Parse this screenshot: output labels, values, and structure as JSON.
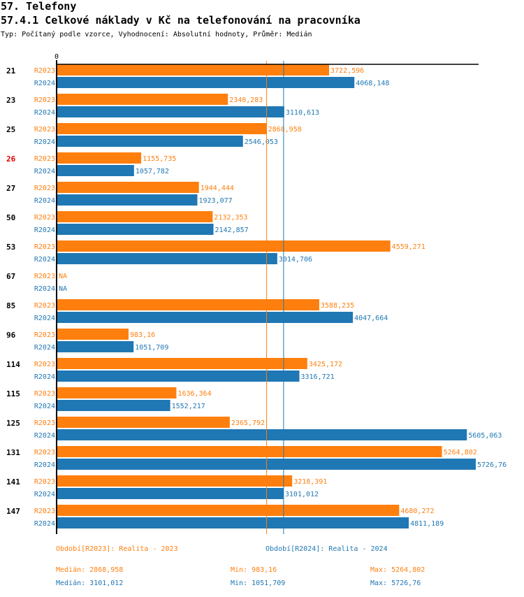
{
  "header": {
    "section": "57. Telefony",
    "title": "57.4.1 Celkové náklady v Kč na telefonování na pracovníka",
    "subtitle": "Typ: Počítaný podle vzorce, Vyhodnocení: Absolutní hodnoty, Průměr: Medián"
  },
  "colors": {
    "R2023": "#ff7f0e",
    "R2024": "#1f77b4",
    "highlight": "#e00000"
  },
  "chart_data": {
    "type": "bar",
    "orientation": "horizontal",
    "title": "57.4.1 Celkové náklady v Kč na telefonování na pracovníka",
    "x_tick_labels": [
      "0"
    ],
    "xlim": [
      0,
      5726.76
    ],
    "categories": [
      "21",
      "23",
      "25",
      "26",
      "27",
      "50",
      "53",
      "67",
      "85",
      "96",
      "114",
      "115",
      "125",
      "131",
      "141",
      "147"
    ],
    "highlighted_category": "26",
    "series": [
      {
        "name": "R2023",
        "values": [
          3722.596,
          2340.283,
          2868.958,
          1155.735,
          1944.444,
          2132.353,
          4559.271,
          null,
          3588.235,
          983.16,
          3425.172,
          1636.364,
          2365.792,
          5264.802,
          3218.391,
          4680.272
        ],
        "labels": [
          "3722,596",
          "2340,283",
          "2868,958",
          "1155,735",
          "1944,444",
          "2132,353",
          "4559,271",
          "NA",
          "3588,235",
          "983,16",
          "3425,172",
          "1636,364",
          "2365,792",
          "5264,802",
          "3218,391",
          "4680,272"
        ]
      },
      {
        "name": "R2024",
        "values": [
          4068.148,
          3110.613,
          2546.053,
          1057.782,
          1923.077,
          2142.857,
          3014.706,
          null,
          4047.664,
          1051.709,
          3316.721,
          1552.217,
          5605.063,
          5726.76,
          3101.012,
          4811.189
        ],
        "labels": [
          "4068,148",
          "3110,613",
          "2546,053",
          "1057,782",
          "1923,077",
          "2142,857",
          "3014,706",
          "NA",
          "4047,664",
          "1051,709",
          "3316,721",
          "1552,217",
          "5605,063",
          "5726,76",
          "3101,012",
          "4811,189"
        ]
      }
    ],
    "reference_lines": [
      {
        "series": "R2023",
        "name": "Medián",
        "value": 2868.958
      },
      {
        "series": "R2024",
        "name": "Medián",
        "value": 3101.012
      }
    ]
  },
  "legend": {
    "R2023": "Období[R2023]: Realita - 2023",
    "R2024": "Období[R2024]: Realita - 2024"
  },
  "stats": {
    "R2023": {
      "median": "Medián: 2868,958",
      "min": "Min: 983,16",
      "max": "Max: 5264,802"
    },
    "R2024": {
      "median": "Medián: 3101,012",
      "min": "Min: 1051,709",
      "max": "Max: 5726,76"
    }
  }
}
